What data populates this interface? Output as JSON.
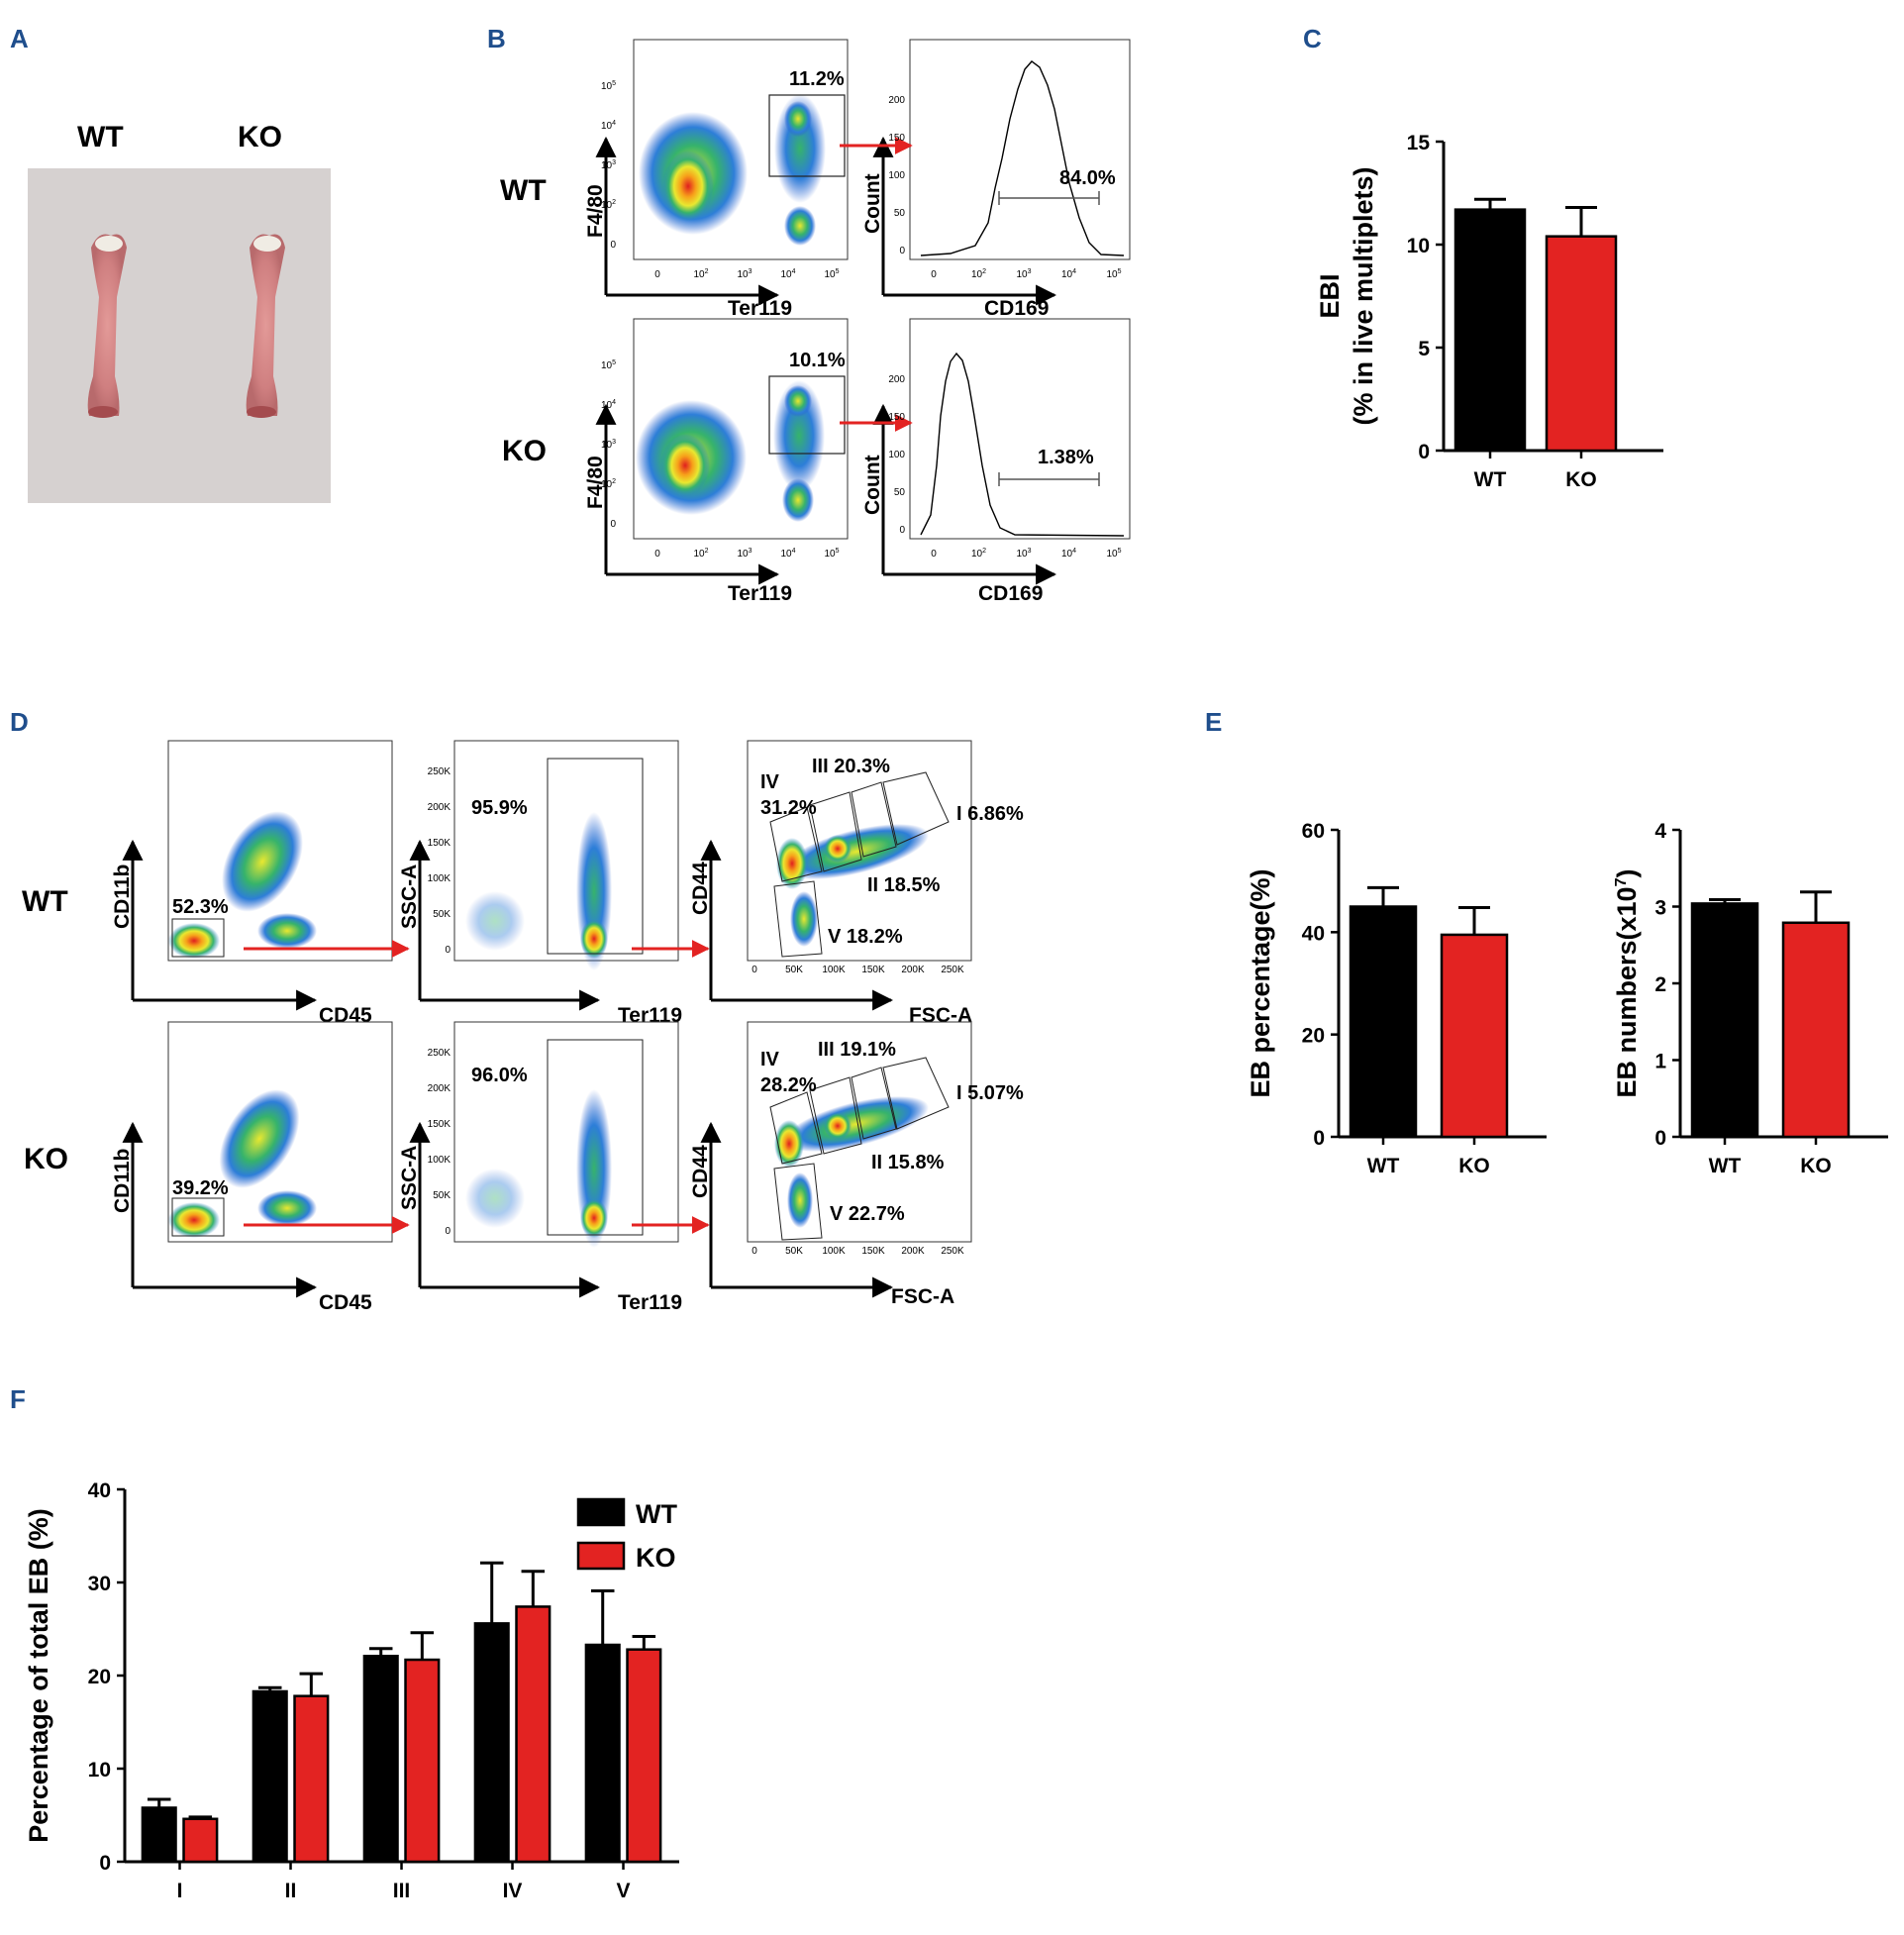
{
  "panels": {
    "A": "A",
    "B": "B",
    "C": "C",
    "D": "D",
    "E": "E",
    "F": "F"
  },
  "panelA": {
    "wt": "WT",
    "ko": "KO"
  },
  "panelB": {
    "row_labels": [
      "WT",
      "KO"
    ],
    "scatter_x": "Ter119",
    "scatter_y": "F4/80",
    "hist_x": "CD169",
    "hist_y": "Count",
    "gate_pct": [
      "11.2%",
      "10.1%"
    ],
    "hist_pct": [
      "84.0%",
      "1.38%"
    ],
    "log_ticks": {
      "base": "10",
      "items": [
        "0",
        "2",
        "3",
        "4",
        "5"
      ]
    },
    "count_ticks": [
      "0",
      "50",
      "100",
      "150",
      "200"
    ]
  },
  "panelD": {
    "row_labels": [
      "WT",
      "KO"
    ],
    "axes": {
      "cd45": "CD45",
      "cd11b": "CD11b",
      "ter119": "Ter119",
      "ssc": "SSC-A",
      "fsc": "FSC-A",
      "cd44": "CD44"
    },
    "ssc_ticks": [
      "0",
      "50K",
      "100K",
      "150K",
      "200K",
      "250K"
    ],
    "fsc_ticks": [
      "0",
      "50K",
      "100K",
      "150K",
      "200K",
      "250K"
    ],
    "wt": {
      "cd11b_gate": "52.3%",
      "ter_gate": "95.9%",
      "III": "III 20.3%",
      "IV_label": "IV",
      "IV": "31.2%",
      "I": "I 6.86%",
      "II": "II 18.5%",
      "V": "V 18.2%"
    },
    "ko": {
      "cd11b_gate": "39.2%",
      "ter_gate": "96.0%",
      "III": "III 19.1%",
      "IV_label": "IV",
      "IV": "28.2%",
      "I": "I 5.07%",
      "II": "II 15.8%",
      "V": "V 22.7%"
    }
  },
  "chart_data": [
    {
      "id": "C",
      "type": "bar",
      "title": "",
      "ylabel": "EBI",
      "ylabel2": "(% in live multiplets)",
      "categories": [
        "WT",
        "KO"
      ],
      "values": [
        11.7,
        10.4
      ],
      "errors": [
        0.5,
        1.4
      ],
      "yticks": [
        "0",
        "5",
        "10",
        "15"
      ],
      "ylim": [
        0,
        15
      ],
      "colors": [
        "#000000",
        "#e32322"
      ]
    },
    {
      "id": "E1",
      "type": "bar",
      "ylabel": "EB percentage(%)",
      "categories": [
        "WT",
        "KO"
      ],
      "values": [
        45,
        39.5
      ],
      "errors": [
        3.7,
        5.3
      ],
      "yticks": [
        "0",
        "20",
        "40",
        "60"
      ],
      "ylim": [
        0,
        60
      ],
      "colors": [
        "#000000",
        "#e32322"
      ]
    },
    {
      "id": "E2",
      "type": "bar",
      "ylabel": "EB numbers(x10",
      "ylabel_sup": "7",
      "ylabel_end": ")",
      "categories": [
        "WT",
        "KO"
      ],
      "values": [
        3.04,
        2.79
      ],
      "errors": [
        0.05,
        0.4
      ],
      "yticks": [
        "0",
        "1",
        "2",
        "3",
        "4"
      ],
      "ylim": [
        0,
        4
      ],
      "colors": [
        "#000000",
        "#e32322"
      ]
    },
    {
      "id": "F",
      "type": "bar",
      "ylabel": "Percentage of total EB (%)",
      "categories": [
        "I",
        "II",
        "III",
        "IV",
        "V"
      ],
      "series": [
        {
          "name": "WT",
          "color": "#000000",
          "values": [
            5.8,
            18.3,
            22.1,
            25.6,
            23.3
          ],
          "errors": [
            0.9,
            0.4,
            0.8,
            6.5,
            5.8
          ]
        },
        {
          "name": "KO",
          "color": "#e32322",
          "values": [
            4.6,
            17.8,
            21.7,
            27.4,
            22.8
          ],
          "errors": [
            0.2,
            2.4,
            2.9,
            3.8,
            1.4
          ]
        }
      ],
      "yticks": [
        "0",
        "10",
        "20",
        "30",
        "40"
      ],
      "ylim": [
        0,
        40
      ]
    }
  ]
}
